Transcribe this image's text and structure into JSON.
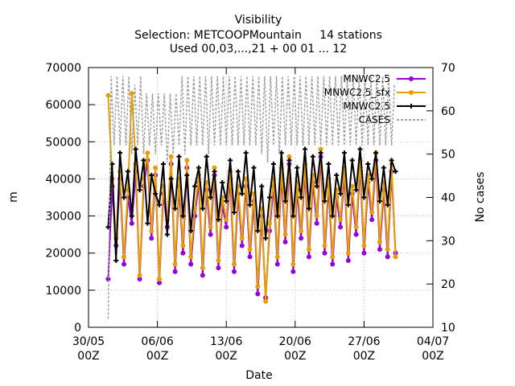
{
  "chart_data": {
    "type": "line",
    "title": "Visibility",
    "subtitle_lines": [
      "Selection: METCOOPMountain     14 stations",
      "Used 00,03,...,21 + 00 01 ... 12"
    ],
    "xlabel": "Date",
    "ylabel": "m",
    "y2label": "No cases",
    "ylim": [
      0,
      70000
    ],
    "y2lim": [
      10,
      70
    ],
    "yticks": [
      "0",
      "10000",
      "20000",
      "30000",
      "40000",
      "50000",
      "60000",
      "70000"
    ],
    "y2ticks": [
      "10",
      "20",
      "30",
      "40",
      "50",
      "60",
      "70"
    ],
    "xticks": [
      {
        "date": "30/05",
        "hour": "00Z"
      },
      {
        "date": "06/06",
        "hour": "00Z"
      },
      {
        "date": "13/06",
        "hour": "00Z"
      },
      {
        "date": "20/06",
        "hour": "00Z"
      },
      {
        "date": "27/06",
        "hour": "00Z"
      },
      {
        "date": "04/07",
        "hour": "00Z"
      }
    ],
    "xlim_days": [
      0,
      35
    ],
    "grid": true,
    "legend_position": "top-right",
    "series": [
      {
        "name": "MNWC2.5",
        "color": "#9400d3",
        "axis": "y1",
        "x_days": [
          2.0,
          2.4,
          2.8,
          3.2,
          3.6,
          4.0,
          4.4,
          4.8,
          5.2,
          5.6,
          6.0,
          6.4,
          6.8,
          7.2,
          7.6,
          8.0,
          8.4,
          8.8,
          9.2,
          9.6,
          10.0,
          10.4,
          10.8,
          11.2,
          11.6,
          12.0,
          12.4,
          12.8,
          13.2,
          13.6,
          14.0,
          14.4,
          14.8,
          15.2,
          15.6,
          16.0,
          16.4,
          16.8,
          17.2,
          17.6,
          18.0,
          18.4,
          18.8,
          19.2,
          19.6,
          20.0,
          20.4,
          20.8,
          21.2,
          21.6,
          22.0,
          22.4,
          22.8,
          23.2,
          23.6,
          24.0,
          24.4,
          24.8,
          25.2,
          25.6,
          26.0,
          26.4,
          26.8,
          27.2,
          27.6,
          28.0,
          28.4,
          28.8,
          29.2,
          29.6,
          30.0,
          30.4,
          30.8,
          31.2
        ],
        "values": [
          13000,
          38000,
          22000,
          40000,
          17000,
          35000,
          28000,
          42000,
          13000,
          38000,
          45000,
          24000,
          41000,
          12000,
          36000,
          27000,
          44000,
          15000,
          38000,
          20000,
          43000,
          17000,
          30000,
          39000,
          14000,
          37000,
          25000,
          41000,
          16000,
          33000,
          27000,
          40000,
          15000,
          36000,
          22000,
          38000,
          19000,
          34000,
          9000,
          30000,
          8000,
          26000,
          38000,
          17000,
          41000,
          23000,
          44000,
          15000,
          37000,
          24000,
          42000,
          19000,
          39000,
          28000,
          46000,
          20000,
          38000,
          17000,
          35000,
          27000,
          41000,
          18000,
          36000,
          25000,
          43000,
          20000,
          39000,
          29000,
          45000,
          21000,
          37000,
          19000,
          42000,
          20000
        ]
      },
      {
        "name": "MNWC2.5_sfx",
        "color": "#e69f00",
        "axis": "y1",
        "x_days": [
          2.0,
          2.4,
          2.8,
          3.2,
          3.6,
          4.0,
          4.4,
          4.8,
          5.2,
          5.6,
          6.0,
          6.4,
          6.8,
          7.2,
          7.6,
          8.0,
          8.4,
          8.8,
          9.2,
          9.6,
          10.0,
          10.4,
          10.8,
          11.2,
          11.6,
          12.0,
          12.4,
          12.8,
          13.2,
          13.6,
          14.0,
          14.4,
          14.8,
          15.2,
          15.6,
          16.0,
          16.4,
          16.8,
          17.2,
          17.6,
          18.0,
          18.4,
          18.8,
          19.2,
          19.6,
          20.0,
          20.4,
          20.8,
          21.2,
          21.6,
          22.0,
          22.4,
          22.8,
          23.2,
          23.6,
          24.0,
          24.4,
          24.8,
          25.2,
          25.6,
          26.0,
          26.4,
          26.8,
          27.2,
          27.6,
          28.0,
          28.4,
          28.8,
          29.2,
          29.6,
          30.0,
          30.4,
          30.8,
          31.2
        ],
        "values": [
          62500,
          40000,
          24000,
          42000,
          19000,
          37000,
          63000,
          44000,
          14000,
          40000,
          47000,
          26000,
          43000,
          13000,
          38000,
          29000,
          46000,
          17000,
          40000,
          22000,
          45000,
          19000,
          32000,
          41000,
          16000,
          39000,
          27000,
          43000,
          18000,
          35000,
          29000,
          42000,
          17000,
          38000,
          24000,
          40000,
          21000,
          36000,
          11000,
          32000,
          7000,
          28000,
          40000,
          19000,
          43000,
          25000,
          46000,
          17000,
          39000,
          26000,
          44000,
          21000,
          41000,
          30000,
          48000,
          22000,
          40000,
          19000,
          37000,
          29000,
          43000,
          20000,
          38000,
          27000,
          45000,
          22000,
          41000,
          31000,
          47000,
          23000,
          39000,
          21000,
          44000,
          19000
        ]
      },
      {
        "name": "MNWC2.5",
        "color": "#000000",
        "axis": "y1",
        "x_days": [
          2.0,
          2.4,
          2.8,
          3.2,
          3.6,
          4.0,
          4.4,
          4.8,
          5.2,
          5.6,
          6.0,
          6.4,
          6.8,
          7.2,
          7.6,
          8.0,
          8.4,
          8.8,
          9.2,
          9.6,
          10.0,
          10.4,
          10.8,
          11.2,
          11.6,
          12.0,
          12.4,
          12.8,
          13.2,
          13.6,
          14.0,
          14.4,
          14.8,
          15.2,
          15.6,
          16.0,
          16.4,
          16.8,
          17.2,
          17.6,
          18.0,
          18.4,
          18.8,
          19.2,
          19.6,
          20.0,
          20.4,
          20.8,
          21.2,
          21.6,
          22.0,
          22.4,
          22.8,
          23.2,
          23.6,
          24.0,
          24.4,
          24.8,
          25.2,
          25.6,
          26.0,
          26.4,
          26.8,
          27.2,
          27.6,
          28.0,
          28.4,
          28.8,
          29.2,
          29.6,
          30.0,
          30.4,
          30.8,
          31.2
        ],
        "values": [
          27000,
          44000,
          18000,
          47000,
          35000,
          42000,
          30000,
          48000,
          37000,
          45000,
          28000,
          41000,
          36000,
          33000,
          44000,
          25000,
          40000,
          32000,
          46000,
          30000,
          41000,
          26000,
          38000,
          43000,
          32000,
          46000,
          35000,
          42000,
          29000,
          39000,
          34000,
          45000,
          31000,
          42000,
          36000,
          47000,
          33000,
          43000,
          26000,
          38000,
          24000,
          35000,
          44000,
          30000,
          47000,
          34000,
          45000,
          30000,
          43000,
          35000,
          48000,
          32000,
          46000,
          38000,
          47000,
          34000,
          44000,
          30000,
          41000,
          36000,
          47000,
          33000,
          45000,
          37000,
          48000,
          35000,
          44000,
          40000,
          47000,
          34000,
          43000,
          33000,
          45000,
          42000
        ]
      },
      {
        "name": "CASES",
        "color": "#a0a0a0",
        "axis": "y2",
        "x_days": [
          2.0,
          2.3,
          2.6,
          2.9,
          3.2,
          3.5,
          3.8,
          4.1,
          4.4,
          4.7,
          5.0,
          5.3,
          5.6,
          5.9,
          6.2,
          6.5,
          6.8,
          7.1,
          7.4,
          7.7,
          8.0,
          8.3,
          8.6,
          8.9,
          9.2,
          9.5,
          9.8,
          10.1,
          10.4,
          10.7,
          11.0,
          11.3,
          11.6,
          11.9,
          12.2,
          12.5,
          12.8,
          13.1,
          13.4,
          13.7,
          14.0,
          14.3,
          14.6,
          14.9,
          15.2,
          15.5,
          15.8,
          16.1,
          16.4,
          16.7,
          17.0,
          17.3,
          17.6,
          17.9,
          18.2,
          18.5,
          18.8,
          19.1,
          19.4,
          19.7,
          20.0,
          20.3,
          20.6,
          20.9,
          21.2,
          21.5,
          21.8,
          22.1,
          22.4,
          22.7,
          23.0,
          23.3,
          23.6,
          23.9,
          24.2,
          24.5,
          24.8,
          25.1,
          25.4,
          25.7,
          26.0,
          26.3,
          26.6,
          26.9,
          27.2,
          27.5,
          27.8,
          28.1,
          28.4,
          28.7,
          29.0,
          29.3,
          29.6,
          29.9,
          30.2,
          30.5,
          30.8,
          31.1
        ],
        "values": [
          12,
          68,
          52,
          68,
          52,
          68,
          52,
          68,
          50,
          66,
          52,
          68,
          50,
          64,
          52,
          64,
          50,
          64,
          52,
          64,
          48,
          64,
          50,
          64,
          52,
          68,
          50,
          68,
          52,
          68,
          52,
          68,
          52,
          68,
          50,
          68,
          52,
          68,
          52,
          68,
          52,
          68,
          52,
          68,
          52,
          68,
          52,
          68,
          52,
          68,
          52,
          68,
          50,
          68,
          48,
          68,
          52,
          68,
          50,
          68,
          52,
          68,
          52,
          68,
          52,
          68,
          52,
          68,
          52,
          68,
          52,
          68,
          52,
          68,
          52,
          68,
          52,
          68,
          52,
          68,
          52,
          68,
          52,
          68,
          52,
          68,
          52,
          68,
          52,
          68,
          52,
          68,
          52,
          68,
          52,
          68,
          52,
          66
        ]
      }
    ]
  }
}
